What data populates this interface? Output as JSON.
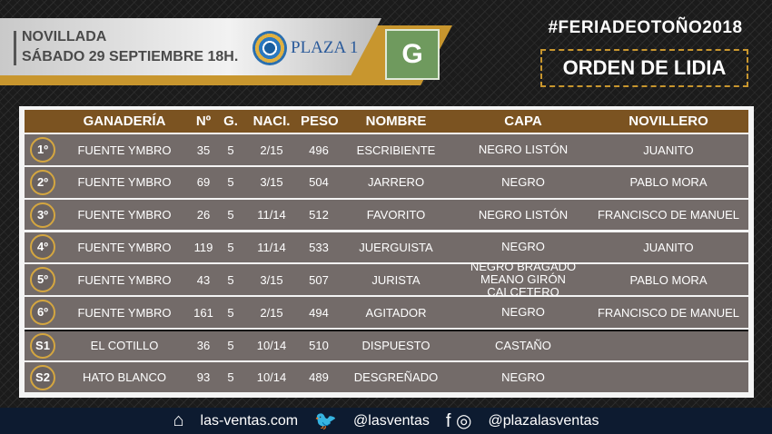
{
  "header": {
    "event": "NOVILLADA",
    "date": "SÁBADO 29 SEPTIEMBRE 18H.",
    "plaza": "PLAZA 1",
    "logo_letter": "G",
    "hashtag": "#FERIADEOTOÑO2018",
    "title": "ORDEN DE LIDIA"
  },
  "table": {
    "columns": [
      "GANADERÍA",
      "Nº",
      "G.",
      "NACI.",
      "PESO",
      "NOMBRE",
      "CAPA",
      "NOVILLERO"
    ],
    "rows": [
      {
        "order": "1º",
        "ganaderia": "FUENTE YMBRO",
        "num": "35",
        "g": "5",
        "naci": "2/15",
        "peso": "496",
        "nombre": "ESCRIBIENTE",
        "capa": "NEGRO LISTÓN",
        "capa2": "",
        "novillero": "JUANITO"
      },
      {
        "order": "2º",
        "ganaderia": "FUENTE YMBRO",
        "num": "69",
        "g": "5",
        "naci": "3/15",
        "peso": "504",
        "nombre": "JARRERO",
        "capa": "NEGRO",
        "capa2": "",
        "novillero": "PABLO MORA"
      },
      {
        "order": "3º",
        "ganaderia": "FUENTE YMBRO",
        "num": "26",
        "g": "5",
        "naci": "11/14",
        "peso": "512",
        "nombre": "FAVORITO",
        "capa": "NEGRO LISTÓN",
        "capa2": "",
        "novillero": "FRANCISCO DE MANUEL"
      },
      {
        "order": "4º",
        "ganaderia": "FUENTE YMBRO",
        "num": "119",
        "g": "5",
        "naci": "11/14",
        "peso": "533",
        "nombre": "JUERGUISTA",
        "capa": "NEGRO",
        "capa2": "",
        "novillero": "JUANITO"
      },
      {
        "order": "5º",
        "ganaderia": "FUENTE YMBRO",
        "num": "43",
        "g": "5",
        "naci": "3/15",
        "peso": "507",
        "nombre": "JURISTA",
        "capa": "NEGRO BRAGADO",
        "capa2": "MEANO GIRÓN CALCETERO",
        "novillero": "PABLO MORA"
      },
      {
        "order": "6º",
        "ganaderia": "FUENTE YMBRO",
        "num": "161",
        "g": "5",
        "naci": "2/15",
        "peso": "494",
        "nombre": "AGITADOR",
        "capa": "NEGRO",
        "capa2": "",
        "novillero": "FRANCISCO DE MANUEL"
      },
      {
        "order": "S1",
        "ganaderia": "EL COTILLO",
        "num": "36",
        "g": "5",
        "naci": "10/14",
        "peso": "510",
        "nombre": "DISPUESTO",
        "capa": "CASTAÑO",
        "capa2": "",
        "novillero": ""
      },
      {
        "order": "S2",
        "ganaderia": "HATO BLANCO",
        "num": "93",
        "g": "5",
        "naci": "10/14",
        "peso": "489",
        "nombre": "DESGREÑADO",
        "capa": "NEGRO",
        "capa2": "",
        "novillero": ""
      }
    ]
  },
  "footer": {
    "web": "las-ventas.com",
    "twitter": "@lasventas",
    "social": "@plazalasventas"
  },
  "colors": {
    "gold": "#c8962e",
    "header_brown": "#7b5321",
    "row_gray": "#736b69",
    "logo_green": "#6f9a5e"
  }
}
